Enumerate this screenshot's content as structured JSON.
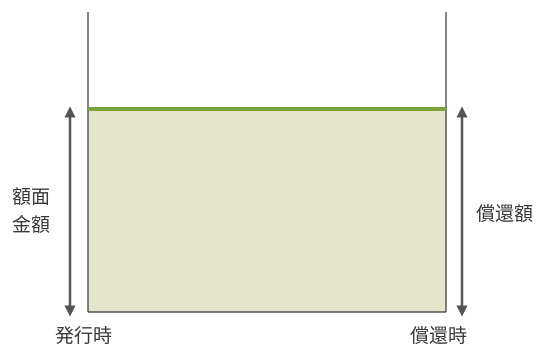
{
  "labels": {
    "face_value_line1": "額面",
    "face_value_line2": "金額",
    "redemption_amount": "償還額",
    "issue_time": "発行時",
    "redemption_time": "償還時"
  },
  "colors": {
    "fill": "#e5e5cc",
    "top_line": "#7aa33a",
    "frame": "#333333",
    "arrow": "#555555",
    "text": "#3a3a3a"
  }
}
